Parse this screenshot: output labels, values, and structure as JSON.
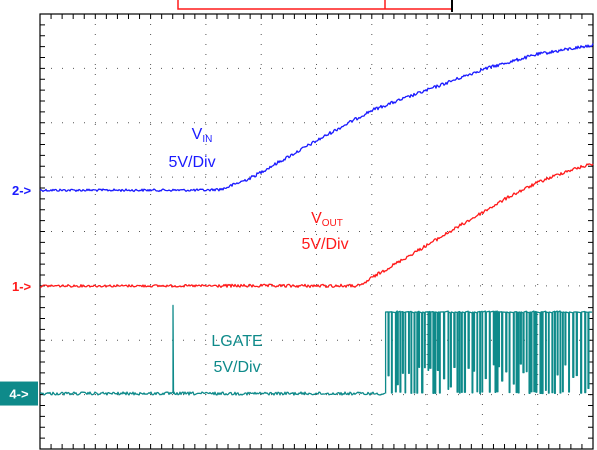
{
  "chart_data": {
    "type": "line",
    "title": "",
    "grid": "dotted, 10 x 8 divisions",
    "x_range": [
      0,
      10
    ],
    "y_range": [
      0,
      8
    ],
    "series": [
      {
        "key": "vin",
        "label_main": "V",
        "label_sub": "IN",
        "scale": "5V/Div",
        "color": "#1a1aff",
        "marker": "2->",
        "x": [
          0,
          1,
          2,
          3,
          3.3,
          3.8,
          4.5,
          5.3,
          6,
          7,
          8,
          9,
          10
        ],
        "y": [
          4.76,
          4.76,
          4.76,
          4.76,
          4.78,
          4.98,
          5.38,
          5.84,
          6.23,
          6.6,
          6.98,
          7.26,
          7.43
        ]
      },
      {
        "key": "vout",
        "label_main": "V",
        "label_sub": "OUT",
        "scale": "5V/Div",
        "color": "#ff1a1a",
        "marker": "1->",
        "x": [
          0,
          1,
          2,
          3,
          4,
          5,
          5.8,
          6,
          6.5,
          7,
          7.5,
          8,
          8.5,
          9,
          9.5,
          10
        ],
        "y": [
          3.0,
          3.0,
          3.0,
          3.0,
          3.0,
          3.0,
          3.0,
          3.15,
          3.45,
          3.75,
          4.05,
          4.35,
          4.65,
          4.9,
          5.1,
          5.25
        ]
      },
      {
        "key": "lgate",
        "label_main": "LGATE",
        "label_sub": "",
        "scale": "5V/Div",
        "color": "#0e8a8a",
        "marker": "4->",
        "low_level": 1.02,
        "high_level": 2.52,
        "spike_x": 2.4,
        "switching_start_x": 6.25,
        "x": [
          0,
          2.4,
          6.25,
          10
        ],
        "y": [
          1.02,
          1.02,
          1.02,
          2.52
        ]
      }
    ],
    "top_marker": {
      "color": "#ff1a1a"
    }
  }
}
